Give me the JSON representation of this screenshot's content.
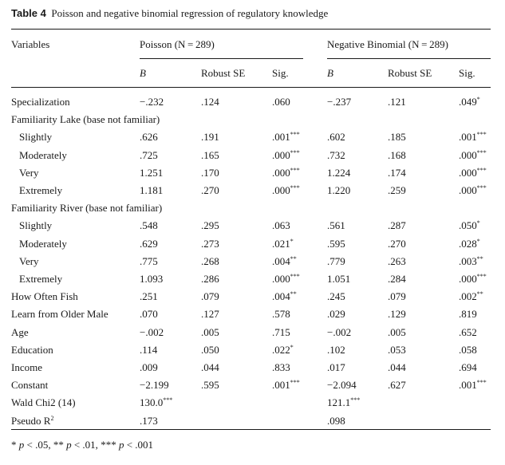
{
  "caption": {
    "label": "Table 4",
    "title": "Poisson and negative binomial regression of regulatory knowledge"
  },
  "header": {
    "variables": "Variables",
    "poisson": "Poisson (N = 289)",
    "negbin": "Negative Binomial (N = 289)",
    "sub": [
      "B",
      "Robust SE",
      "Sig.",
      "B",
      "Robust SE",
      "Sig."
    ]
  },
  "rows": [
    {
      "label": "Specialization",
      "indent": false,
      "cells": [
        "−.232",
        ".124",
        ".060",
        "",
        "−.237",
        ".121",
        ".049",
        "*"
      ]
    },
    {
      "label": "Familiarity Lake (base not familiar)",
      "indent": false,
      "cells": [
        "",
        "",
        "",
        "",
        "",
        "",
        "",
        ""
      ]
    },
    {
      "label": "Slightly",
      "indent": true,
      "cells": [
        ".626",
        ".191",
        ".001",
        "***",
        ".602",
        ".185",
        ".001",
        "***"
      ]
    },
    {
      "label": "Moderately",
      "indent": true,
      "cells": [
        ".725",
        ".165",
        ".000",
        "***",
        ".732",
        ".168",
        ".000",
        "***"
      ]
    },
    {
      "label": "Very",
      "indent": true,
      "cells": [
        "1.251",
        ".170",
        ".000",
        "***",
        "1.224",
        ".174",
        ".000",
        "***"
      ]
    },
    {
      "label": "Extremely",
      "indent": true,
      "cells": [
        "1.181",
        ".270",
        ".000",
        "***",
        "1.220",
        ".259",
        ".000",
        "***"
      ]
    },
    {
      "label": "Familiarity River (base not familiar)",
      "indent": false,
      "cells": [
        "",
        "",
        "",
        "",
        "",
        "",
        "",
        ""
      ]
    },
    {
      "label": "Slightly",
      "indent": true,
      "cells": [
        ".548",
        ".295",
        ".063",
        "",
        ".561",
        ".287",
        ".050",
        "*"
      ]
    },
    {
      "label": "Moderately",
      "indent": true,
      "cells": [
        ".629",
        ".273",
        ".021",
        "*",
        ".595",
        ".270",
        ".028",
        "*"
      ]
    },
    {
      "label": "Very",
      "indent": true,
      "cells": [
        ".775",
        ".268",
        ".004",
        "**",
        ".779",
        ".263",
        ".003",
        "**"
      ]
    },
    {
      "label": "Extremely",
      "indent": true,
      "cells": [
        "1.093",
        ".286",
        ".000",
        "***",
        "1.051",
        ".284",
        ".000",
        "***"
      ]
    },
    {
      "label": "How Often Fish",
      "indent": false,
      "cells": [
        ".251",
        ".079",
        ".004",
        "**",
        ".245",
        ".079",
        ".002",
        "**"
      ]
    },
    {
      "label": "Learn from Older Male",
      "indent": false,
      "cells": [
        ".070",
        ".127",
        ".578",
        "",
        ".029",
        ".129",
        ".819",
        ""
      ]
    },
    {
      "label": "Age",
      "indent": false,
      "cells": [
        "−.002",
        ".005",
        ".715",
        "",
        "−.002",
        ".005",
        ".652",
        ""
      ]
    },
    {
      "label": "Education",
      "indent": false,
      "cells": [
        ".114",
        ".050",
        ".022",
        "*",
        ".102",
        ".053",
        ".058",
        ""
      ]
    },
    {
      "label": "Income",
      "indent": false,
      "cells": [
        ".009",
        ".044",
        ".833",
        "",
        ".017",
        ".044",
        ".694",
        ""
      ]
    },
    {
      "label": "Constant",
      "indent": false,
      "cells": [
        "−2.199",
        ".595",
        ".001",
        "***",
        "−2.094",
        ".627",
        ".001",
        "***"
      ]
    },
    {
      "label": "Wald Chi2 (14)",
      "indent": false,
      "cells": [
        "130.0",
        "",
        "",
        "***",
        "121.1",
        "",
        "",
        "***"
      ]
    },
    {
      "label": "Pseudo R",
      "sup": "2",
      "indent": false,
      "cells": [
        ".173",
        "",
        "",
        "",
        ".098",
        "",
        "",
        ""
      ]
    }
  ],
  "footnote": {
    "p1_star": "*",
    "p1_text": " < .05, ",
    "p2_star": "**",
    "p2_text": " < .01, ",
    "p3_star": "***",
    "p3_text": " < .001",
    "p": "p"
  }
}
